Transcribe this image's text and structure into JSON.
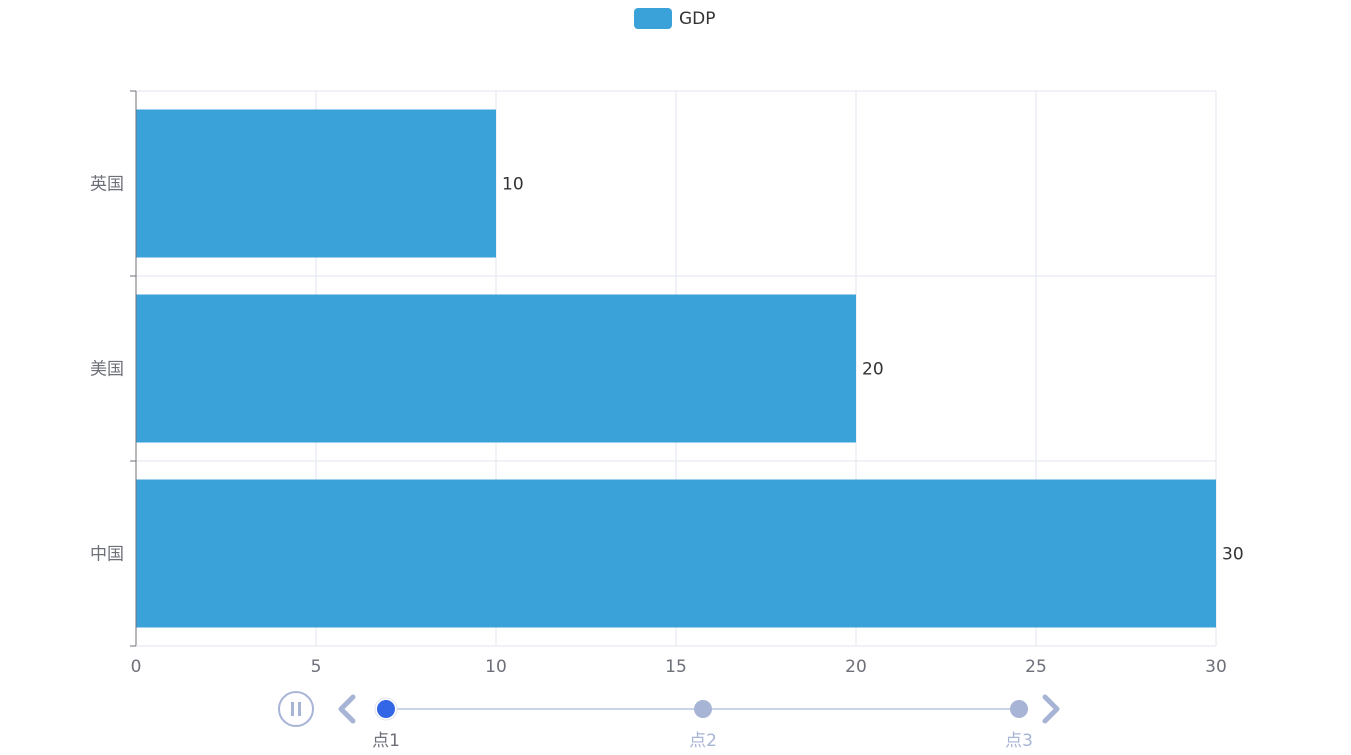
{
  "chart_data": {
    "type": "bar",
    "orientation": "horizontal",
    "categories": [
      "英国",
      "美国",
      "中国"
    ],
    "series": [
      {
        "name": "GDP",
        "values": [
          10,
          20,
          30
        ]
      }
    ],
    "xlim": [
      0,
      30
    ],
    "xticks": [
      0,
      5,
      10,
      15,
      20,
      25,
      30
    ],
    "data_labels": [
      "10",
      "20",
      "30"
    ],
    "legend_position": "top-center",
    "grid": true,
    "bar_color": "#3aa2d9"
  },
  "timeline": {
    "points": [
      "点1",
      "点2",
      "点3"
    ],
    "active_index": 0,
    "play_state": "playing",
    "line_color": "#c9d3ea",
    "dot_color": "#a7b4d6",
    "active_color": "#3266e6"
  }
}
